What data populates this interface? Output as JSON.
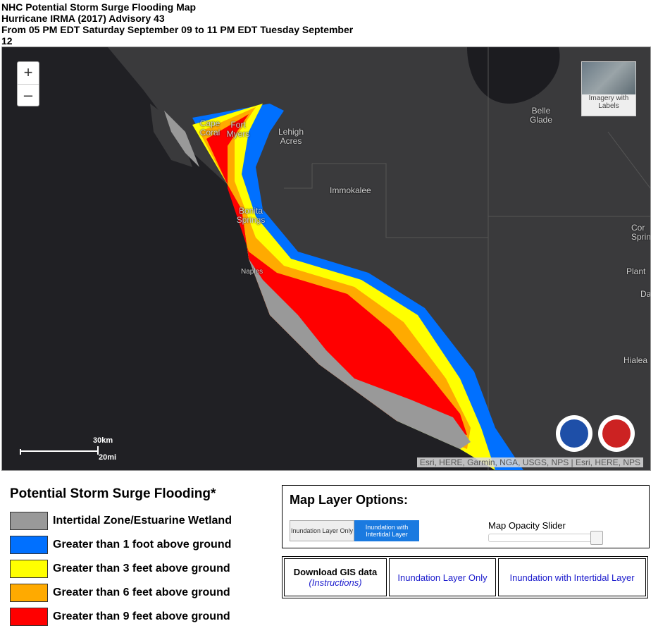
{
  "header": {
    "title": "NHC Potential Storm Surge Flooding Map",
    "subtitle": "Hurricane IRMA (2017) Advisory 43",
    "period": "From 05 PM EDT Saturday September 09 to 11 PM EDT Tuesday September 12"
  },
  "map": {
    "zoom_in": "+",
    "zoom_out": "–",
    "basemap": "Imagery with Labels",
    "places": [
      {
        "label": "Cape Coral"
      },
      {
        "label": "Fort Myers"
      },
      {
        "label": "Lehigh Acres"
      },
      {
        "label": "Immokalee"
      },
      {
        "label": "Bonita Springs"
      },
      {
        "label": "Naples"
      },
      {
        "label": "Belle Glade"
      },
      {
        "label": "Cor Sprin"
      },
      {
        "label": "Plant"
      },
      {
        "label": "Da"
      },
      {
        "label": "Hialea"
      }
    ],
    "scale_km": "30km",
    "scale_mi": "20mi",
    "attribution": "Esri, HERE, Garmin, NGA, USGS, NPS | Esri, HERE, NPS"
  },
  "legend": {
    "title": "Potential Storm Surge Flooding*",
    "items": [
      {
        "label": "Intertidal Zone/Estuarine Wetland",
        "color": "#999999"
      },
      {
        "label": "Greater than 1 foot above ground",
        "color": "#0070ff"
      },
      {
        "label": "Greater than 3 feet above ground",
        "color": "#ffff00"
      },
      {
        "label": "Greater than 6 feet above ground",
        "color": "#ffaa00"
      },
      {
        "label": "Greater than 9 feet above ground",
        "color": "#ff0000"
      }
    ]
  },
  "options": {
    "title": "Map Layer Options:",
    "button_1": "Inundation Layer Only",
    "button_2": "Inundation with Intertidal Layer",
    "slider": "Map Opacity Slider"
  },
  "downloads": {
    "gis": "Download GIS data",
    "instructions": "(Instructions)",
    "link_1": "Inundation Layer Only",
    "link_2": "Inundation with Intertidal Layer"
  }
}
